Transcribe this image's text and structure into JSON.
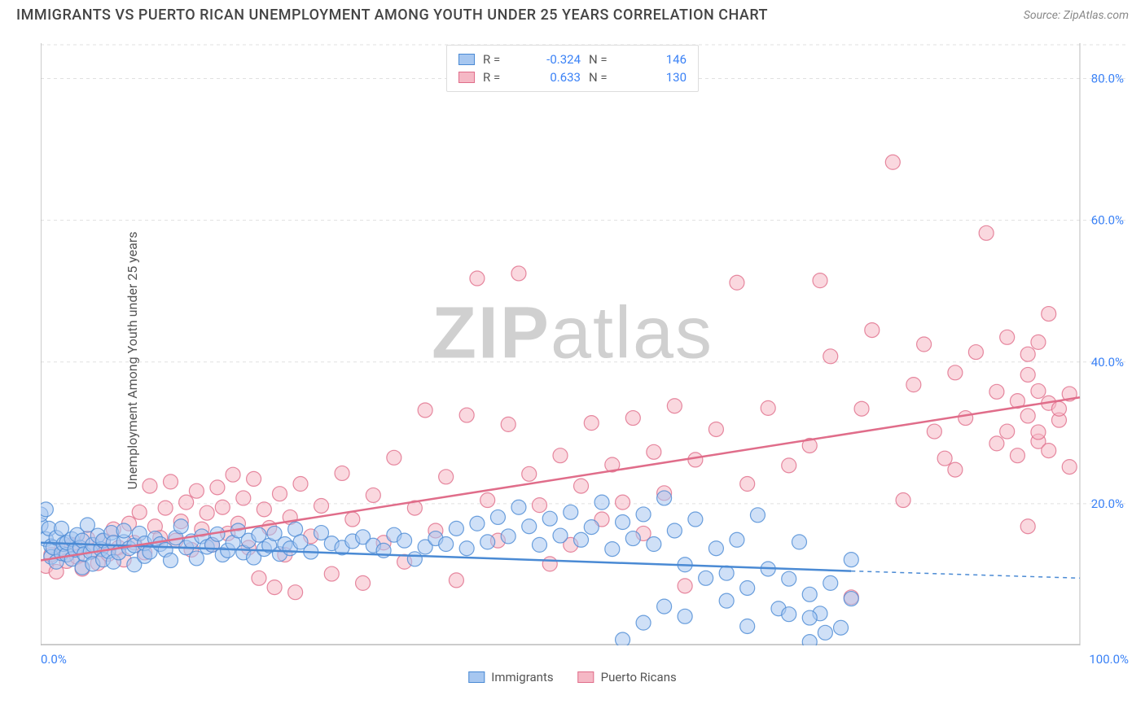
{
  "title": "IMMIGRANTS VS PUERTO RICAN UNEMPLOYMENT AMONG YOUTH UNDER 25 YEARS CORRELATION CHART",
  "source": "Source: ZipAtlas.com",
  "watermark_prefix": "ZIP",
  "watermark_suffix": "atlas",
  "ylabel": "Unemployment Among Youth under 25 years",
  "chart": {
    "type": "scatter",
    "xlim": [
      0,
      100
    ],
    "ylim": [
      0,
      85
    ],
    "xtick_labels": [
      "0.0%",
      "100.0%"
    ],
    "ytick_values": [
      20,
      40,
      60,
      80
    ],
    "ytick_labels": [
      "20.0%",
      "40.0%",
      "60.0%",
      "80.0%"
    ],
    "ytick_color": "#3b82f6",
    "background_color": "#ffffff",
    "grid_color": "#e0e0e0",
    "grid_dash": "4 4",
    "axis_line_color": "#bbbbbb",
    "marker_radius": 9,
    "marker_opacity": 0.55,
    "marker_stroke_width": 1.2,
    "trend_line_width": 2.5,
    "series": [
      {
        "name": "Immigrants",
        "fill": "#a7c7f0",
        "stroke": "#4a8ad4",
        "R": "-0.324",
        "N": "146",
        "trend": {
          "x1": 0,
          "y1": 14.5,
          "x2": 78,
          "y2": 10.5,
          "dash_x2": 100,
          "dash_y2": 9.5
        },
        "points": [
          [
            0,
            17
          ],
          [
            0.5,
            15
          ],
          [
            0.8,
            16.5
          ],
          [
            1,
            14
          ],
          [
            1,
            12.5
          ],
          [
            1.2,
            13.8
          ],
          [
            1.5,
            15.2
          ],
          [
            1.5,
            11.8
          ],
          [
            2,
            16.5
          ],
          [
            2,
            13
          ],
          [
            2.2,
            14.3
          ],
          [
            2.5,
            12.8
          ],
          [
            2.5,
            14.5
          ],
          [
            3,
            15
          ],
          [
            3,
            12.2
          ],
          [
            3.3,
            13.5
          ],
          [
            3.5,
            15.6
          ],
          [
            3.8,
            13.8
          ],
          [
            4,
            11
          ],
          [
            4,
            14.8
          ],
          [
            4.2,
            12.9
          ],
          [
            4.5,
            17
          ],
          [
            4.8,
            13.2
          ],
          [
            5,
            14.2
          ],
          [
            5,
            11.5
          ],
          [
            5.5,
            15.5
          ],
          [
            5.8,
            13.6
          ],
          [
            6,
            14.8
          ],
          [
            6,
            12.1
          ],
          [
            6.5,
            13.3
          ],
          [
            6.8,
            15.9
          ],
          [
            7,
            14.5
          ],
          [
            7,
            11.8
          ],
          [
            7.5,
            13.1
          ],
          [
            8,
            14.6
          ],
          [
            8,
            16.2
          ],
          [
            8.5,
            13.7
          ],
          [
            9,
            14.1
          ],
          [
            9,
            11.4
          ],
          [
            9.5,
            15.8
          ],
          [
            10,
            12.6
          ],
          [
            10,
            14.4
          ],
          [
            10.5,
            13.2
          ],
          [
            11,
            15.1
          ],
          [
            11.5,
            14.3
          ],
          [
            12,
            13.5
          ],
          [
            12.5,
            12
          ],
          [
            13,
            15.2
          ],
          [
            13.5,
            16.8
          ],
          [
            14,
            13.8
          ],
          [
            14.5,
            14.7
          ],
          [
            15,
            12.3
          ],
          [
            15.5,
            15.4
          ],
          [
            16,
            13.9
          ],
          [
            16.5,
            14.2
          ],
          [
            17,
            15.7
          ],
          [
            17.5,
            12.8
          ],
          [
            18,
            13.4
          ],
          [
            18.5,
            14.5
          ],
          [
            19,
            16.2
          ],
          [
            19.5,
            13.1
          ],
          [
            20,
            14.8
          ],
          [
            20.5,
            12.4
          ],
          [
            21,
            15.6
          ],
          [
            21.5,
            13.6
          ],
          [
            22,
            14.1
          ],
          [
            22.5,
            15.8
          ],
          [
            23,
            12.9
          ],
          [
            23.5,
            14.3
          ],
          [
            24,
            13.7
          ],
          [
            24.5,
            16.4
          ],
          [
            25,
            14.6
          ],
          [
            26,
            13.2
          ],
          [
            27,
            15.9
          ],
          [
            28,
            14.4
          ],
          [
            29,
            13.8
          ],
          [
            30,
            14.7
          ],
          [
            31,
            15.3
          ],
          [
            32,
            14.1
          ],
          [
            33,
            13.4
          ],
          [
            34,
            15.6
          ],
          [
            35,
            14.8
          ],
          [
            36,
            12.2
          ],
          [
            37,
            13.9
          ],
          [
            38,
            15.1
          ],
          [
            39,
            14.3
          ],
          [
            40,
            16.5
          ],
          [
            41,
            13.7
          ],
          [
            42,
            17.2
          ],
          [
            43,
            14.6
          ],
          [
            44,
            18.1
          ],
          [
            45,
            15.4
          ],
          [
            46,
            19.5
          ],
          [
            47,
            16.8
          ],
          [
            48,
            14.2
          ],
          [
            49,
            17.9
          ],
          [
            50,
            15.5
          ],
          [
            51,
            18.8
          ],
          [
            52,
            14.9
          ],
          [
            53,
            16.7
          ],
          [
            54,
            20.2
          ],
          [
            55,
            13.6
          ],
          [
            56,
            17.4
          ],
          [
            57,
            15.1
          ],
          [
            58,
            18.5
          ],
          [
            59,
            14.3
          ],
          [
            60,
            20.8
          ],
          [
            61,
            16.2
          ],
          [
            62,
            11.4
          ],
          [
            63,
            17.8
          ],
          [
            64,
            9.5
          ],
          [
            65,
            13.7
          ],
          [
            66,
            10.2
          ],
          [
            67,
            14.9
          ],
          [
            68,
            8.1
          ],
          [
            69,
            18.4
          ],
          [
            70,
            10.8
          ],
          [
            71,
            5.2
          ],
          [
            72,
            9.4
          ],
          [
            73,
            14.6
          ],
          [
            74,
            7.2
          ],
          [
            74,
            0.5
          ],
          [
            75,
            4.5
          ],
          [
            75.5,
            1.8
          ],
          [
            76,
            8.8
          ],
          [
            77,
            2.5
          ],
          [
            78,
            12.1
          ],
          [
            0,
            18.5
          ],
          [
            0.5,
            19.2
          ],
          [
            56,
            0.8
          ],
          [
            58,
            3.2
          ],
          [
            60,
            5.5
          ],
          [
            62,
            4.1
          ],
          [
            66,
            6.3
          ],
          [
            68,
            2.7
          ],
          [
            72,
            4.4
          ],
          [
            74,
            3.9
          ],
          [
            78,
            6.6
          ]
        ]
      },
      {
        "name": "Puerto Ricans",
        "fill": "#f5b8c5",
        "stroke": "#e06d8a",
        "R": "0.633",
        "N": "130",
        "trend": {
          "x1": 0,
          "y1": 12,
          "x2": 100,
          "y2": 35
        },
        "points": [
          [
            0.5,
            11.2
          ],
          [
            1,
            12.8
          ],
          [
            1.5,
            10.4
          ],
          [
            2,
            13.5
          ],
          [
            2.5,
            11.9
          ],
          [
            3,
            14.2
          ],
          [
            3.5,
            12.5
          ],
          [
            4,
            10.8
          ],
          [
            4.5,
            15.1
          ],
          [
            5,
            13.3
          ],
          [
            5.5,
            11.6
          ],
          [
            6,
            14.7
          ],
          [
            6.5,
            12.9
          ],
          [
            7,
            16.4
          ],
          [
            7.5,
            13.8
          ],
          [
            8,
            12.1
          ],
          [
            8.5,
            17.2
          ],
          [
            9,
            14.5
          ],
          [
            9.5,
            18.8
          ],
          [
            10,
            13.1
          ],
          [
            10.5,
            22.5
          ],
          [
            11,
            16.8
          ],
          [
            11.5,
            15.2
          ],
          [
            12,
            19.4
          ],
          [
            12.5,
            23.1
          ],
          [
            13,
            14.8
          ],
          [
            13.5,
            17.5
          ],
          [
            14,
            20.2
          ],
          [
            14.5,
            13.5
          ],
          [
            15,
            21.8
          ],
          [
            15.5,
            16.4
          ],
          [
            16,
            18.7
          ],
          [
            16.5,
            14.2
          ],
          [
            17,
            22.3
          ],
          [
            17.5,
            19.5
          ],
          [
            18,
            15.8
          ],
          [
            18.5,
            24.1
          ],
          [
            19,
            17.2
          ],
          [
            19.5,
            20.8
          ],
          [
            20,
            13.8
          ],
          [
            20.5,
            23.5
          ],
          [
            21,
            9.5
          ],
          [
            21.5,
            19.2
          ],
          [
            22,
            16.6
          ],
          [
            22.5,
            8.2
          ],
          [
            23,
            21.4
          ],
          [
            23.5,
            12.8
          ],
          [
            24,
            18.1
          ],
          [
            24.5,
            7.5
          ],
          [
            25,
            22.8
          ],
          [
            26,
            15.4
          ],
          [
            27,
            19.7
          ],
          [
            28,
            10.1
          ],
          [
            29,
            24.3
          ],
          [
            30,
            17.8
          ],
          [
            31,
            8.8
          ],
          [
            32,
            21.2
          ],
          [
            33,
            14.5
          ],
          [
            34,
            26.5
          ],
          [
            35,
            11.8
          ],
          [
            36,
            19.4
          ],
          [
            37,
            33.2
          ],
          [
            38,
            16.2
          ],
          [
            39,
            23.8
          ],
          [
            40,
            9.2
          ],
          [
            41,
            32.5
          ],
          [
            42,
            51.8
          ],
          [
            43,
            20.5
          ],
          [
            44,
            14.8
          ],
          [
            45,
            31.2
          ],
          [
            46,
            52.5
          ],
          [
            47,
            24.2
          ],
          [
            48,
            19.8
          ],
          [
            49,
            11.5
          ],
          [
            50,
            26.8
          ],
          [
            51,
            14.2
          ],
          [
            52,
            22.5
          ],
          [
            53,
            31.4
          ],
          [
            54,
            17.8
          ],
          [
            55,
            25.5
          ],
          [
            56,
            20.2
          ],
          [
            57,
            32.1
          ],
          [
            58,
            15.8
          ],
          [
            59,
            27.3
          ],
          [
            60,
            21.5
          ],
          [
            61,
            33.8
          ],
          [
            62,
            8.4
          ],
          [
            63,
            26.2
          ],
          [
            65,
            30.5
          ],
          [
            67,
            51.2
          ],
          [
            68,
            22.8
          ],
          [
            70,
            33.5
          ],
          [
            72,
            25.4
          ],
          [
            74,
            28.2
          ],
          [
            75,
            51.5
          ],
          [
            76,
            40.8
          ],
          [
            79,
            33.4
          ],
          [
            80,
            44.5
          ],
          [
            82,
            68.2
          ],
          [
            83,
            20.5
          ],
          [
            84,
            36.8
          ],
          [
            85,
            42.5
          ],
          [
            86,
            30.2
          ],
          [
            87,
            26.4
          ],
          [
            88,
            38.5
          ],
          [
            88,
            24.8
          ],
          [
            89,
            32.1
          ],
          [
            90,
            41.4
          ],
          [
            91,
            58.2
          ],
          [
            92,
            35.8
          ],
          [
            92,
            28.5
          ],
          [
            93,
            43.5
          ],
          [
            93,
            30.2
          ],
          [
            94,
            34.5
          ],
          [
            94,
            26.8
          ],
          [
            95,
            38.2
          ],
          [
            95,
            32.4
          ],
          [
            95,
            41.1
          ],
          [
            95,
            16.8
          ],
          [
            96,
            28.8
          ],
          [
            96,
            35.9
          ],
          [
            96,
            42.8
          ],
          [
            96,
            30.1
          ],
          [
            97,
            34.2
          ],
          [
            97,
            27.5
          ],
          [
            97,
            46.8
          ],
          [
            98,
            31.8
          ],
          [
            98,
            33.4
          ],
          [
            99,
            35.5
          ],
          [
            99,
            25.2
          ],
          [
            78,
            6.8
          ]
        ]
      }
    ]
  },
  "legend_top": {
    "r_label": "R =",
    "n_label": "N ="
  },
  "legend_bottom": [
    "Immigrants",
    "Puerto Ricans"
  ]
}
